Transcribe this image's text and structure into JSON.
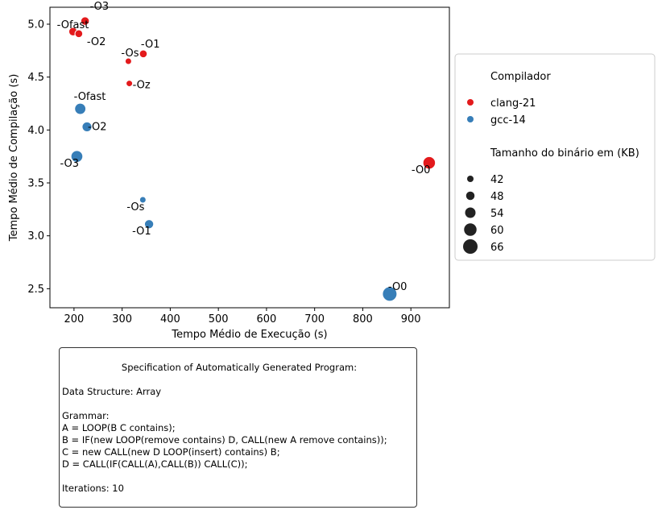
{
  "chart_data": {
    "type": "scatter",
    "xlabel": "Tempo Médio de Execução (s)",
    "ylabel": "Tempo Médio de Compilação (s)",
    "xlim": [
      150,
      980
    ],
    "ylim": [
      2.32,
      5.16
    ],
    "xticks": [
      200,
      300,
      400,
      500,
      600,
      700,
      800,
      900
    ],
    "yticks": [
      2.5,
      3.0,
      3.5,
      4.0,
      4.5,
      5.0
    ],
    "ytick_labels": [
      "2.5",
      "3.0",
      "3.5",
      "4.0",
      "4.5",
      "5.0"
    ],
    "grid": false,
    "series": [
      {
        "name": "clang-21",
        "color": "#e31a1c",
        "points": [
          {
            "label": "-O3",
            "x": 223,
            "y": 5.03,
            "size": 48
          },
          {
            "label": "-Ofast",
            "x": 198,
            "y": 4.93,
            "size": 48
          },
          {
            "label": "-O2",
            "x": 210,
            "y": 4.91,
            "size": 46
          },
          {
            "label": "-O1",
            "x": 344,
            "y": 4.72,
            "size": 46
          },
          {
            "label": "-Os",
            "x": 313,
            "y": 4.65,
            "size": 42
          },
          {
            "label": "-Oz",
            "x": 315,
            "y": 4.44,
            "size": 42
          },
          {
            "label": "-O0",
            "x": 938,
            "y": 3.69,
            "size": 60
          }
        ]
      },
      {
        "name": "gcc-14",
        "color": "#377eb8",
        "points": [
          {
            "label": "-Ofast",
            "x": 213,
            "y": 4.2,
            "size": 56
          },
          {
            "label": "-O2",
            "x": 227,
            "y": 4.03,
            "size": 52
          },
          {
            "label": "-O3",
            "x": 206,
            "y": 3.75,
            "size": 58
          },
          {
            "label": "-Os",
            "x": 343,
            "y": 3.34,
            "size": 42
          },
          {
            "label": "-O1",
            "x": 356,
            "y": 3.11,
            "size": 50
          },
          {
            "label": "-O0",
            "x": 856,
            "y": 2.45,
            "size": 66
          }
        ]
      }
    ],
    "legend": {
      "placement": "outside-right",
      "hue_title": "Compilador",
      "size_title": "Tamanho do binário em (KB)",
      "size_entries": [
        42,
        48,
        54,
        60,
        66
      ]
    }
  },
  "spec_box": {
    "title": "Specification of Automatically Generated Program:",
    "data_structure": "Data Structure: Array",
    "grammar_heading": "Grammar:",
    "grammar_lines": [
      "A = LOOP(B C contains);",
      "B = IF(new LOOP(remove contains) D, CALL(new A remove contains));",
      "C = new CALL(new D LOOP(insert) contains) B;",
      "D = CALL(IF(CALL(A),CALL(B)) CALL(C));"
    ],
    "iterations": "Iterations: 10"
  }
}
